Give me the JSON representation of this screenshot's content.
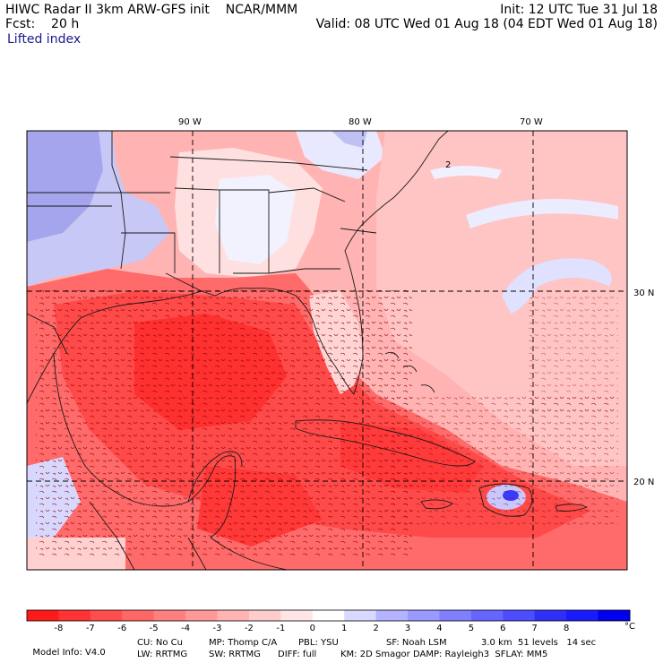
{
  "header": {
    "title_left": "HIWC Radar II 3km ARW-GFS init    NCAR/MMM",
    "fcst": "Fcst:    20 h",
    "field": "Lifted index",
    "init": "Init: 12 UTC Tue 31 Jul 18",
    "valid": "Valid: 08 UTC Wed 01 Aug 18 (04 EDT Wed 01 Aug 18)"
  },
  "map": {
    "lon_labels": [
      "90 W",
      "80 W",
      "70 W"
    ],
    "lat_labels": [
      "30 N",
      "20 N"
    ],
    "contour_label": "2"
  },
  "colorbar": {
    "labels": [
      "-8",
      "-7",
      "-6",
      "-5",
      "-4",
      "-3",
      "-2",
      "-1",
      "0",
      "1",
      "2",
      "3",
      "4",
      "5",
      "6",
      "7",
      "8"
    ],
    "unit": "°C",
    "colors": [
      "#ff1a1a",
      "#ff3333",
      "#ff4d4d",
      "#ff6666",
      "#ff7f7f",
      "#ff9999",
      "#ffb3b3",
      "#ffcccc",
      "#ffe6e6",
      "#ffffff",
      "#d9d9ff",
      "#b3b3ff",
      "#9999ff",
      "#7f7fff",
      "#6666ff",
      "#4d4dff",
      "#2f2ff5",
      "#1a1aff",
      "#0000ee"
    ]
  },
  "footer": {
    "line1_a": "Model Info: V4.0",
    "line1_b": "CU: No Cu",
    "line1_c": "MP: Thomp C/A",
    "line1_d": "PBL: YSU",
    "line1_e": "SF: Noah LSM",
    "line1_f": "3.0 km  51 levels   14 sec",
    "line2_a": "LW: RRTMG",
    "line2_b": "SW: RRTMG",
    "line2_c": "DIFF: full",
    "line2_d": "KM: 2D Smagor DAMP: Rayleigh3  SFLAY: MM5"
  }
}
